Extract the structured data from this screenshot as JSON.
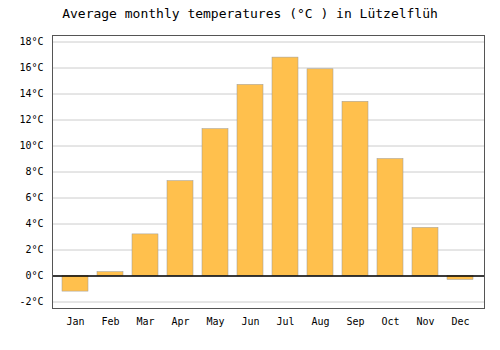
{
  "chart_data": {
    "type": "bar",
    "title": "Average monthly temperatures (°C ) in Lützelflüh",
    "categories": [
      "Jan",
      "Feb",
      "Mar",
      "Apr",
      "May",
      "Jun",
      "Jul",
      "Aug",
      "Sep",
      "Oct",
      "Nov",
      "Dec"
    ],
    "values": [
      -1.2,
      0.3,
      3.2,
      7.3,
      11.3,
      14.7,
      16.8,
      15.9,
      13.4,
      9.0,
      3.7,
      -0.3
    ],
    "color": "#FFC04D",
    "ylim": [
      -2.5,
      18.5
    ],
    "yticks": [
      {
        "value": -2,
        "label": "-2°C"
      },
      {
        "value": 0,
        "label": "0°C"
      },
      {
        "value": 2,
        "label": "2°C"
      },
      {
        "value": 4,
        "label": "4°C"
      },
      {
        "value": 6,
        "label": "6°C"
      },
      {
        "value": 8,
        "label": "8°C"
      },
      {
        "value": 10,
        "label": "10°C"
      },
      {
        "value": 12,
        "label": "12°C"
      },
      {
        "value": 14,
        "label": "14°C"
      },
      {
        "value": 16,
        "label": "16°C"
      },
      {
        "value": 18,
        "label": "18°C"
      }
    ],
    "grid": true
  }
}
